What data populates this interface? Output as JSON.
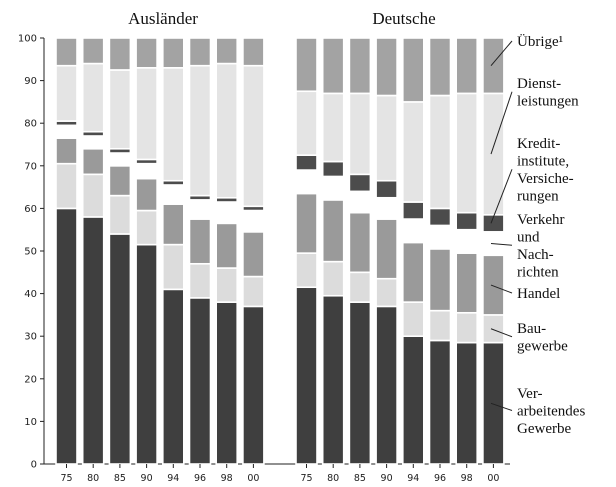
{
  "chart_data": {
    "type": "bar",
    "stacked": true,
    "ylim": [
      0,
      100
    ],
    "y_ticks": [
      0,
      10,
      20,
      30,
      40,
      50,
      60,
      70,
      80,
      90,
      100
    ],
    "grid": false,
    "groups": [
      {
        "title": "Ausländer",
        "categories": [
          "75",
          "80",
          "85",
          "90",
          "94",
          "96",
          "98",
          "00"
        ],
        "series": [
          {
            "name": "Ver-|arbeitendes|Gewerbe",
            "values": [
              60,
              58,
              54,
              51.5,
              41,
              39,
              38,
              37
            ]
          },
          {
            "name": "Bau-|gewerbe",
            "values": [
              10.5,
              10,
              9,
              8,
              10.5,
              8,
              8,
              7
            ]
          },
          {
            "name": "Handel",
            "values": [
              6,
              6,
              7,
              7.5,
              9.5,
              10.5,
              10.5,
              10.5
            ]
          },
          {
            "name": "Verkehr|und|Nach-|richten",
            "values": [
              3,
              3,
              3,
              3.5,
              4.5,
              4.5,
              5,
              5
            ]
          },
          {
            "name": "Kredit-|institute,|Versiche-|rungen",
            "values": [
              1,
              1,
              1,
              1,
              1,
              1,
              1,
              1
            ]
          },
          {
            "name": "Dienst-|leistungen",
            "values": [
              13,
              16,
              18.5,
              21.5,
              26.5,
              30.5,
              31.5,
              33
            ]
          },
          {
            "name": "Übrige¹",
            "values": [
              6.5,
              6,
              7.5,
              7,
              7,
              6.5,
              6,
              6.5
            ]
          }
        ]
      },
      {
        "title": "Deutsche",
        "categories": [
          "75",
          "80",
          "85",
          "90",
          "94",
          "96",
          "98",
          "00"
        ],
        "series": [
          {
            "name": "Ver-|arbeitendes|Gewerbe",
            "values": [
              41.5,
              39.5,
              38,
              37,
              30,
              29,
              28.5,
              28.5
            ]
          },
          {
            "name": "Bau-|gewerbe",
            "values": [
              8,
              8,
              7,
              6.5,
              8,
              7,
              7,
              6.5
            ]
          },
          {
            "name": "Handel",
            "values": [
              14,
              14.5,
              14,
              14,
              14,
              14.5,
              14,
              14
            ]
          },
          {
            "name": "Verkehr|und|Nach-|richten",
            "values": [
              5.5,
              5.5,
              5,
              5,
              5.5,
              5.5,
              5.5,
              5.5
            ]
          },
          {
            "name": "Kredit-|institute,|Versiche-|rungen",
            "values": [
              3.5,
              3.5,
              4,
              4,
              4,
              4,
              4,
              4
            ]
          },
          {
            "name": "Dienst-|leistungen",
            "values": [
              15,
              16,
              19,
              20,
              23.5,
              26.5,
              28,
              28.5
            ]
          },
          {
            "name": "Übrige¹",
            "values": [
              12.5,
              13,
              13,
              13.5,
              15,
              13.5,
              13,
              13
            ]
          }
        ]
      }
    ],
    "series_colors": [
      "#3f3f3f",
      "#dcdcdc",
      "#9a9a9a",
      "#ffffff",
      "#4c4c4c",
      "#e4e4e4",
      "#a3a3a3"
    ],
    "legend_position": "right"
  }
}
